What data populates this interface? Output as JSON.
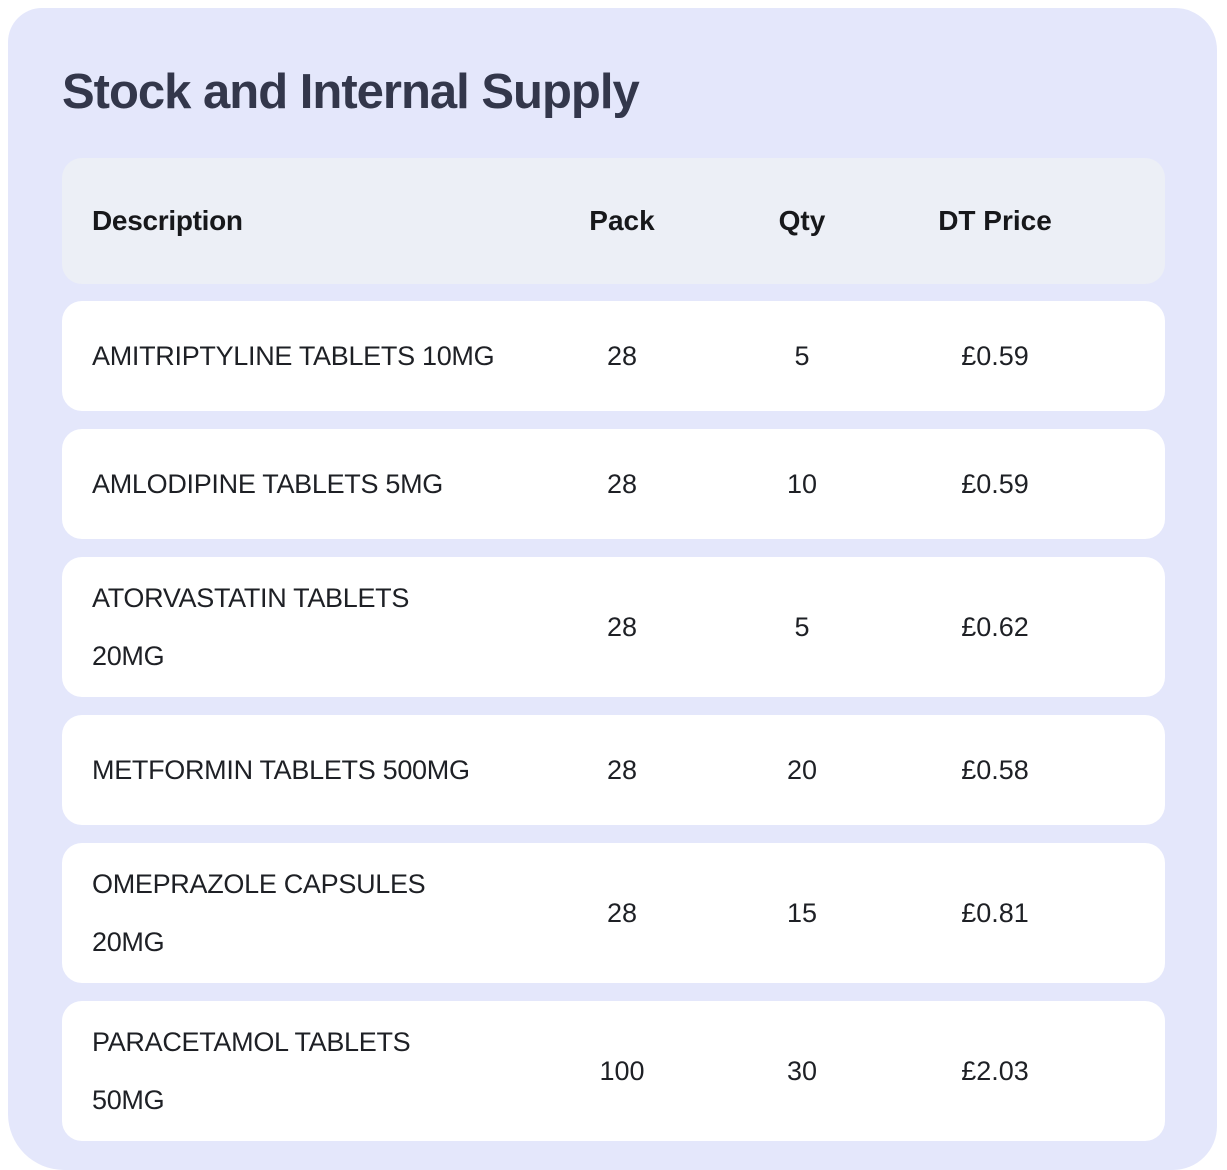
{
  "page": {
    "title": "Stock and Internal Supply"
  },
  "colors": {
    "panel_bg": "#e4e7fb",
    "header_bg": "#eceff6",
    "row_bg": "#ffffff",
    "title_text": "#33374b",
    "header_text": "#17181b",
    "data_text": "#1e2025"
  },
  "table": {
    "headers": {
      "description": "Description",
      "pack": "Pack",
      "qty": "Qty",
      "price": "DT Price"
    },
    "rows": [
      {
        "description": "AMITRIPTYLINE TABLETS  10MG",
        "pack": "28",
        "qty": "5",
        "price": "£0.59"
      },
      {
        "description": "AMLODIPINE TABLETS 5MG",
        "pack": "28",
        "qty": "10",
        "price": "£0.59"
      },
      {
        "description": "ATORVASTATIN TABLETS\n20MG",
        "pack": "28",
        "qty": "5",
        "price": "£0.62"
      },
      {
        "description": "METFORMIN TABLETS 500MG",
        "pack": "28",
        "qty": "20",
        "price": "£0.58"
      },
      {
        "description": "OMEPRAZOLE CAPSULES\n20MG",
        "pack": "28",
        "qty": "15",
        "price": "£0.81"
      },
      {
        "description": "PARACETAMOL TABLETS\n50MG",
        "pack": "100",
        "qty": "30",
        "price": "£2.03"
      }
    ]
  }
}
